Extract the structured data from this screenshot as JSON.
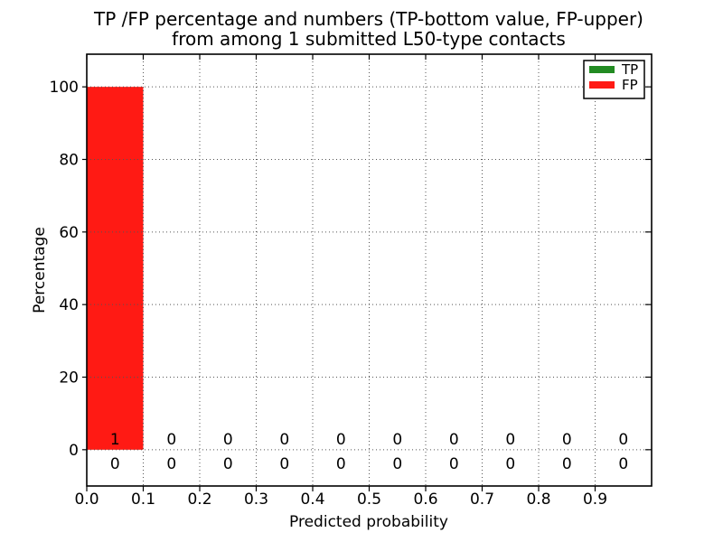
{
  "chart_data": {
    "type": "bar",
    "title": "TP /FP percentage and numbers (TP-bottom value, FP-upper)\nfrom among 1 submitted L50-type contacts",
    "title_line1": "TP /FP percentage and numbers (TP-bottom value, FP-upper)",
    "title_line2": "from among 1 submitted L50-type contacts",
    "xlabel": "Predicted probability",
    "ylabel": "Percentage",
    "xlim": [
      0.0,
      1.0
    ],
    "ylim": [
      -10,
      109
    ],
    "xtick_values": [
      0.0,
      0.1,
      0.2,
      0.3,
      0.4,
      0.5,
      0.6,
      0.7,
      0.8,
      0.9
    ],
    "xtick_labels": [
      "0.0",
      "0.1",
      "0.2",
      "0.3",
      "0.4",
      "0.5",
      "0.6",
      "0.7",
      "0.8",
      "0.9"
    ],
    "ytick_values": [
      0,
      20,
      40,
      60,
      80,
      100
    ],
    "ytick_labels": [
      "0",
      "20",
      "40",
      "60",
      "80",
      "100"
    ],
    "grid": {
      "style": "dotted",
      "color": "#555555"
    },
    "bin_edges": [
      0.0,
      0.1,
      0.2,
      0.3,
      0.4,
      0.5,
      0.6,
      0.7,
      0.8,
      0.9,
      1.0
    ],
    "series": [
      {
        "name": "TP",
        "color": "#228b22",
        "counts_row": "bottom",
        "percentages": [
          0,
          0,
          0,
          0,
          0,
          0,
          0,
          0,
          0,
          0
        ],
        "counts": [
          0,
          0,
          0,
          0,
          0,
          0,
          0,
          0,
          0,
          0
        ]
      },
      {
        "name": "FP",
        "color": "#ff1a14",
        "counts_row": "upper",
        "percentages": [
          100,
          0,
          0,
          0,
          0,
          0,
          0,
          0,
          0,
          0
        ],
        "counts": [
          1,
          0,
          0,
          0,
          0,
          0,
          0,
          0,
          0,
          0
        ]
      }
    ],
    "legend": {
      "position": "upper right",
      "entries": [
        "TP",
        "FP"
      ]
    }
  }
}
